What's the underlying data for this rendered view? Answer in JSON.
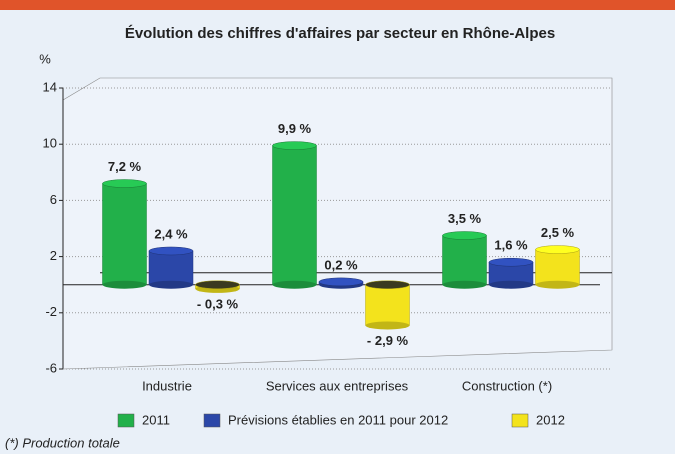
{
  "chart_data": {
    "type": "bar",
    "title": "Évolution des chiffres d'affaires par secteur en Rhône-Alpes",
    "y_label": "%",
    "categories": [
      "Industrie",
      "Services aux entreprises",
      "Construction (*)"
    ],
    "series": [
      {
        "name": "2011",
        "color": "#22b04a",
        "values": [
          7.2,
          9.9,
          3.5
        ],
        "value_labels": [
          "7,2 %",
          "9,9 %",
          "3,5 %"
        ]
      },
      {
        "name": "Prévisions établies en 2011 pour 2012",
        "color": "#2b47a8",
        "values": [
          2.4,
          0.2,
          1.6
        ],
        "value_labels": [
          "2,4 %",
          "0,2 %",
          "1,6 %"
        ]
      },
      {
        "name": "2012",
        "color": "#f3e31c",
        "values": [
          -0.3,
          -2.9,
          2.5
        ],
        "value_labels": [
          "- 0,3 %",
          "- 2,9 %",
          "2,5 %"
        ]
      }
    ],
    "ylim": [
      -6,
      14
    ],
    "yticks": [
      -6,
      -2,
      2,
      6,
      10,
      14
    ],
    "grid": true,
    "footnote": "(*) Production totale"
  }
}
